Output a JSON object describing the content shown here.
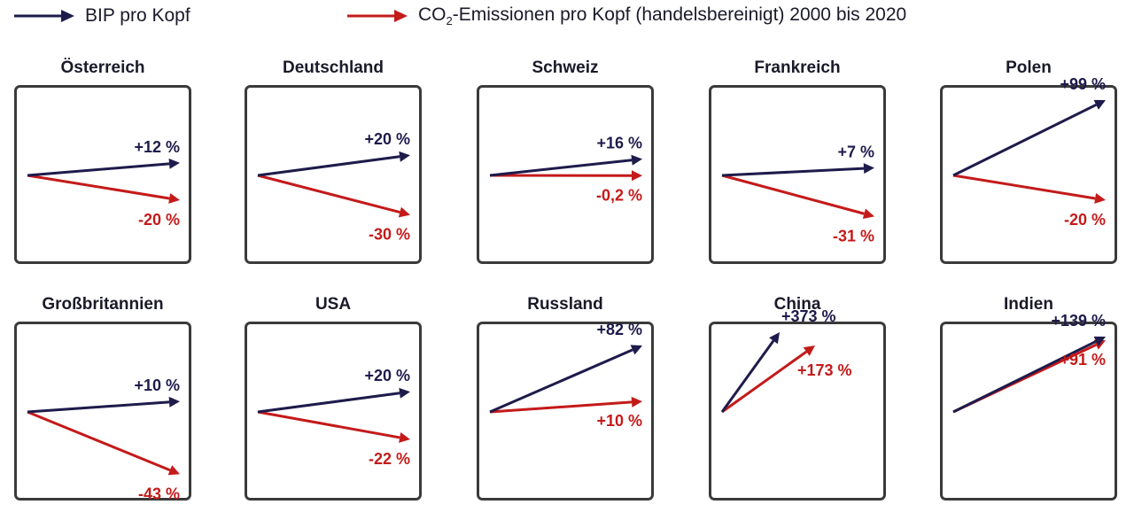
{
  "legend": {
    "gdp_label": "BIP pro Kopf",
    "co2_prefix": "CO",
    "co2_subscript": "2",
    "co2_suffix": "-Emissionen pro Kopf (handelsbereinigt) 2000 bis 2020"
  },
  "colors": {
    "gdp": "#1e1b4b",
    "co2": "#c41a1a",
    "frame": "#3a3a3a",
    "text": "#1a1a2a"
  },
  "chart_data": {
    "type": "small-multiple arrow chart",
    "period": "2000 bis 2020",
    "panels": [
      {
        "country": "Österreich",
        "gdp_change_pct": 12,
        "co2_change_pct": -20,
        "gdp_label": "+12 %",
        "co2_label": "-20 %"
      },
      {
        "country": "Deutschland",
        "gdp_change_pct": 20,
        "co2_change_pct": -30,
        "gdp_label": "+20 %",
        "co2_label": "-30 %"
      },
      {
        "country": "Schweiz",
        "gdp_change_pct": 16,
        "co2_change_pct": -0.2,
        "gdp_label": "+16 %",
        "co2_label": "-0,2 %"
      },
      {
        "country": "Frankreich",
        "gdp_change_pct": 7,
        "co2_change_pct": -31,
        "gdp_label": "+7 %",
        "co2_label": "-31 %"
      },
      {
        "country": "Polen",
        "gdp_change_pct": 99,
        "co2_change_pct": -20,
        "gdp_label": "+99 %",
        "co2_label": "-20 %"
      },
      {
        "country": "Großbritannien",
        "gdp_change_pct": 10,
        "co2_change_pct": -43,
        "gdp_label": "+10 %",
        "co2_label": "-43 %"
      },
      {
        "country": "USA",
        "gdp_change_pct": 20,
        "co2_change_pct": -22,
        "gdp_label": "+20 %",
        "co2_label": "-22 %"
      },
      {
        "country": "Russland",
        "gdp_change_pct": 82,
        "co2_change_pct": 10,
        "gdp_label": "+82 %",
        "co2_label": "+10 %"
      },
      {
        "country": "China",
        "gdp_change_pct": 373,
        "co2_change_pct": 173,
        "gdp_label": "+373 %",
        "co2_label": "+173 %"
      },
      {
        "country": "Indien",
        "gdp_change_pct": 139,
        "co2_change_pct": 91,
        "gdp_label": "+139 %",
        "co2_label": "+91 %"
      }
    ]
  }
}
